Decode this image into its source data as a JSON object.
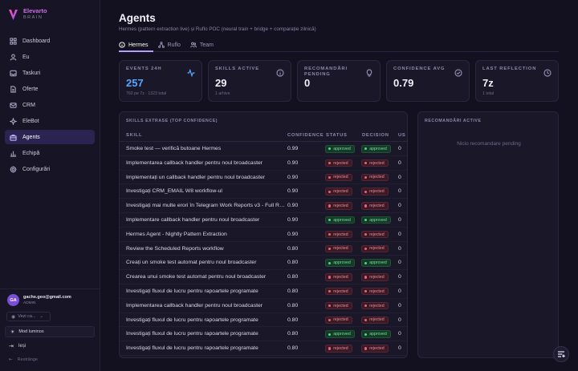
{
  "brand": {
    "name": "Elevarto",
    "subtitle": "BRAIN"
  },
  "sidebar": {
    "items": [
      {
        "label": "Dashboard",
        "icon": "grid-icon"
      },
      {
        "label": "Eu",
        "icon": "user-icon"
      },
      {
        "label": "Taskuri",
        "icon": "inbox-icon"
      },
      {
        "label": "Oferte",
        "icon": "file-icon"
      },
      {
        "label": "CRM",
        "icon": "mail-icon"
      },
      {
        "label": "EleBot",
        "icon": "bot-icon"
      },
      {
        "label": "Agents",
        "icon": "briefcase-icon",
        "active": true
      },
      {
        "label": "Echipă",
        "icon": "chart-icon"
      },
      {
        "label": "Configurări",
        "icon": "gear-icon"
      }
    ],
    "user": {
      "initials": "GA",
      "email": "gache.geo@gmail.com",
      "role": "ADMIN"
    },
    "view_as": "Vezi ca...",
    "light_mode": "Mod luminos",
    "logout": "Ieși",
    "collapse": "Restrânge"
  },
  "page": {
    "title": "Agents",
    "subtitle": "Hermes (pattern extraction live) și Ruflo POC (neural train + bridge + comparație zilnică)"
  },
  "tabs": [
    {
      "label": "Hermes",
      "active": true
    },
    {
      "label": "Ruflo"
    },
    {
      "label": "Team"
    }
  ],
  "stats": [
    {
      "label": "EVENTS 24H",
      "value": "257",
      "sub": "760 pe 7z · 1323 total",
      "icon": "activity-icon",
      "accent": "#5aa6ff"
    },
    {
      "label": "SKILLS ACTIVE",
      "value": "29",
      "sub": "1 arhive",
      "icon": "info-icon"
    },
    {
      "label": "RECOMANDĂRI PENDING",
      "value": "0",
      "sub": "",
      "icon": "lightbulb-icon"
    },
    {
      "label": "CONFIDENCE AVG",
      "value": "0.79",
      "sub": "",
      "icon": "check-circle-icon"
    },
    {
      "label": "LAST REFLECTION",
      "value": "7z",
      "sub": "1 total",
      "icon": "clock-icon"
    }
  ],
  "skills": {
    "title": "SKILLS EXTRASE (TOP CONFIDENCE)",
    "columns": [
      "SKILL",
      "CONFIDENCE",
      "STATUS",
      "DECISION",
      "US"
    ],
    "rows": [
      {
        "skill": "Smoke test — verifică butoane Hermes",
        "confidence": "0.99",
        "status": "approved",
        "decision": "approved",
        "us": "0"
      },
      {
        "skill": "Implementarea callback handler pentru noul broadcaster",
        "confidence": "0.90",
        "status": "rejected",
        "decision": "rejected",
        "us": "0"
      },
      {
        "skill": "Implementați un callback handler pentru noul broadcaster",
        "confidence": "0.90",
        "status": "rejected",
        "decision": "rejected",
        "us": "0"
      },
      {
        "skill": "Investigați CRM_EMAIL W8 workflow-ul",
        "confidence": "0.90",
        "status": "rejected",
        "decision": "rejected",
        "us": "0"
      },
      {
        "skill": "Investigați mai multe erori în Telegram Work Reports v3 - Full Report",
        "confidence": "0.90",
        "status": "rejected",
        "decision": "rejected",
        "us": "0"
      },
      {
        "skill": "Implementare callback handler pentru noul broadcaster",
        "confidence": "0.90",
        "status": "approved",
        "decision": "approved",
        "us": "0"
      },
      {
        "skill": "Hermes Agent - Nightly Pattern Extraction",
        "confidence": "0.90",
        "status": "rejected",
        "decision": "rejected",
        "us": "0"
      },
      {
        "skill": "Review the Scheduled Reports workflow",
        "confidence": "0.80",
        "status": "rejected",
        "decision": "rejected",
        "us": "0"
      },
      {
        "skill": "Creați un smoke test automat pentru noul broadcaster",
        "confidence": "0.80",
        "status": "approved",
        "decision": "approved",
        "us": "0"
      },
      {
        "skill": "Crearea unui smoke test automat pentru noul broadcaster",
        "confidence": "0.80",
        "status": "rejected",
        "decision": "rejected",
        "us": "0"
      },
      {
        "skill": "Investigați fluxul de lucru pentru rapoartele programate",
        "confidence": "0.80",
        "status": "rejected",
        "decision": "rejected",
        "us": "0"
      },
      {
        "skill": "Implementarea callback handler pentru noul broadcaster",
        "confidence": "0.80",
        "status": "rejected",
        "decision": "rejected",
        "us": "0"
      },
      {
        "skill": "Investigați fluxul de lucru pentru rapoartele programate",
        "confidence": "0.80",
        "status": "rejected",
        "decision": "rejected",
        "us": "0"
      },
      {
        "skill": "Investigați fluxul de lucru pentru rapoartele programate",
        "confidence": "0.80",
        "status": "approved",
        "decision": "approved",
        "us": "0"
      },
      {
        "skill": "Investigați fluxul de lucru pentru rapoartele programate",
        "confidence": "0.80",
        "status": "rejected",
        "decision": "rejected",
        "us": "0"
      }
    ]
  },
  "recommendations": {
    "title": "RECOMANDĂRI ACTIVE",
    "empty": "Nicio recomandare pending"
  },
  "fab": {
    "icon": "list-filter-icon"
  }
}
